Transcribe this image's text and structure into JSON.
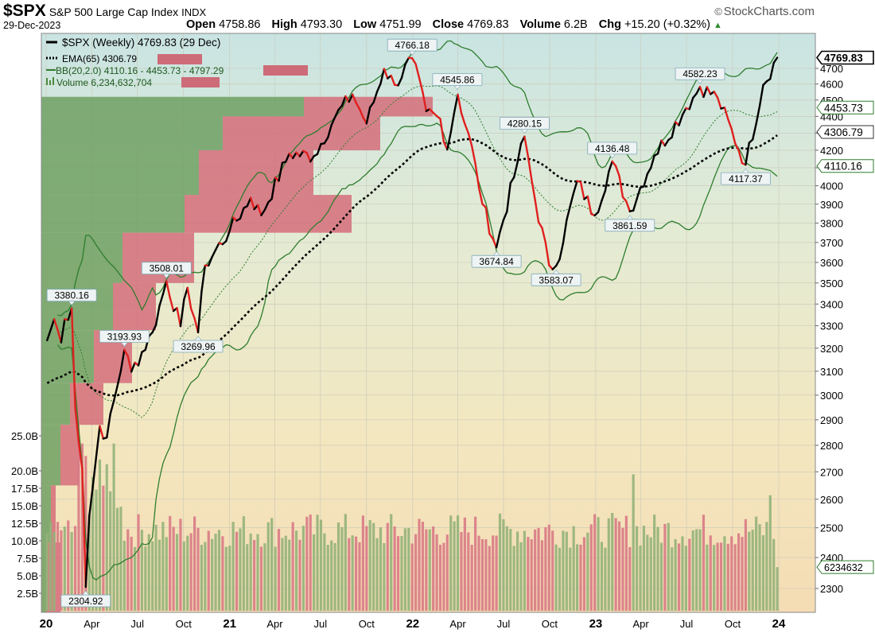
{
  "header": {
    "symbol": "$SPX",
    "name": "S&P 500 Large Cap Index",
    "exchange": "INDX",
    "brand": "StockCharts.com",
    "date": "29-Dec-2023",
    "open_label": "Open",
    "open": "4758.86",
    "high_label": "High",
    "high": "4793.30",
    "low_label": "Low",
    "low": "4751.99",
    "close_label": "Close",
    "close": "4769.83",
    "volume_label": "Volume",
    "volume": "6.2B",
    "chg_label": "Chg",
    "chg": "+15.20 (+0.32%)"
  },
  "legend": {
    "price": "$SPX (Weekly) 4769.83 (29 Dec)",
    "ema": "EMA(65) 4306.79",
    "bb": "BB(20,2.0) 4110.16 - 4453.73 - 4797.29",
    "volume": "Volume 6,234,632,704"
  },
  "colors": {
    "up": "#000000",
    "down": "#e0201f",
    "ema": "#000000",
    "bb": "#2e7d2e",
    "vol_up": "#93b27a",
    "vol_down": "#d97a86",
    "vbp_up": "#6fa063",
    "vbp_down": "#d56d7a"
  },
  "chart_data": {
    "type": "line",
    "title": "$SPX S&P 500 Large Cap Index",
    "y_axis_right": {
      "ticks": [
        2300,
        2400,
        2500,
        2600,
        2700,
        2800,
        2900,
        3000,
        3100,
        3200,
        3300,
        3400,
        3500,
        3600,
        3700,
        3800,
        3900,
        4000,
        4100,
        4200,
        4300,
        4400,
        4500,
        4600,
        4700
      ],
      "range": [
        2210,
        4820
      ],
      "scale": "log"
    },
    "volume_axis_left": {
      "ticks": [
        "2.5B",
        "5.0B",
        "7.5B",
        "10.0B",
        "12.5B",
        "15.0B",
        "17.5B",
        "20.0B",
        "25.0B"
      ],
      "values": [
        2.5,
        5,
        7.5,
        10,
        12.5,
        15,
        17.5,
        20,
        25
      ]
    },
    "x_axis": {
      "labels": [
        "20",
        "Apr",
        "Jul",
        "Oct",
        "21",
        "Apr",
        "Jul",
        "Oct",
        "22",
        "Apr",
        "Jul",
        "Oct",
        "23",
        "Apr",
        "Jul",
        "Oct",
        "24"
      ],
      "dates": [
        "2020-01",
        "2020-04",
        "2020-07",
        "2020-10",
        "2021-01",
        "2021-04",
        "2021-07",
        "2021-10",
        "2022-01",
        "2022-04",
        "2022-07",
        "2022-10",
        "2023-01",
        "2023-04",
        "2023-07",
        "2023-10",
        "2024-01"
      ]
    },
    "price_series": {
      "name": "$SPX (Weekly)",
      "points": [
        [
          "2020-01-03",
          3235
        ],
        [
          "2020-01-17",
          3330
        ],
        [
          "2020-01-31",
          3225
        ],
        [
          "2020-02-07",
          3330
        ],
        [
          "2020-02-21",
          3380
        ],
        [
          "2020-02-28",
          2950
        ],
        [
          "2020-03-13",
          2710
        ],
        [
          "2020-03-20",
          2305
        ],
        [
          "2020-03-27",
          2540
        ],
        [
          "2020-04-17",
          2875
        ],
        [
          "2020-05-01",
          2830
        ],
        [
          "2020-06-05",
          3193
        ],
        [
          "2020-06-19",
          3098
        ],
        [
          "2020-07-31",
          3270
        ],
        [
          "2020-08-28",
          3508
        ],
        [
          "2020-09-25",
          3298
        ],
        [
          "2020-10-09",
          3477
        ],
        [
          "2020-10-30",
          3270
        ],
        [
          "2020-11-13",
          3585
        ],
        [
          "2020-12-31",
          3756
        ],
        [
          "2021-02-12",
          3934
        ],
        [
          "2021-03-05",
          3841
        ],
        [
          "2021-04-30",
          4181
        ],
        [
          "2021-06-18",
          4166
        ],
        [
          "2021-07-30",
          4395
        ],
        [
          "2021-09-03",
          4535
        ],
        [
          "2021-10-01",
          4357
        ],
        [
          "2021-11-05",
          4697
        ],
        [
          "2021-11-26",
          4595
        ],
        [
          "2021-12-31",
          4766
        ],
        [
          "2022-01-28",
          4432
        ],
        [
          "2022-02-25",
          4385
        ],
        [
          "2022-03-11",
          4204
        ],
        [
          "2022-03-31",
          4546
        ],
        [
          "2022-05-06",
          4123
        ],
        [
          "2022-05-20",
          3901
        ],
        [
          "2022-06-17",
          3675
        ],
        [
          "2022-07-29",
          4130
        ],
        [
          "2022-08-12",
          4280
        ],
        [
          "2022-09-02",
          3924
        ],
        [
          "2022-09-30",
          3586
        ],
        [
          "2022-10-14",
          3583
        ],
        [
          "2022-11-25",
          4026
        ],
        [
          "2022-12-30",
          3840
        ],
        [
          "2023-02-03",
          4136
        ],
        [
          "2023-03-10",
          3862
        ],
        [
          "2023-04-28",
          4169
        ],
        [
          "2023-06-30",
          4450
        ],
        [
          "2023-07-28",
          4582
        ],
        [
          "2023-09-01",
          4515
        ],
        [
          "2023-10-27",
          4117
        ],
        [
          "2023-12-01",
          4594
        ],
        [
          "2023-12-29",
          4769.83
        ]
      ]
    },
    "ema65_last": 4306.79,
    "bollinger_last": {
      "lower": 4110.16,
      "middle": 4453.73,
      "upper": 4797.29
    },
    "annotations": [
      {
        "date": "2020-02-21",
        "value": 3380.16,
        "label": "3380.16",
        "pos": "above"
      },
      {
        "date": "2020-03-20",
        "value": 2304.92,
        "label": "2304.92",
        "pos": "below"
      },
      {
        "date": "2020-06-05",
        "value": 3193.93,
        "label": "3193.93",
        "pos": "above"
      },
      {
        "date": "2020-08-28",
        "value": 3508.01,
        "label": "3508.01",
        "pos": "above"
      },
      {
        "date": "2020-10-30",
        "value": 3269.96,
        "label": "3269.96",
        "pos": "below"
      },
      {
        "date": "2021-12-31",
        "value": 4766.18,
        "label": "4766.18",
        "pos": "above"
      },
      {
        "date": "2022-03-31",
        "value": 4545.86,
        "label": "4545.86",
        "pos": "above"
      },
      {
        "date": "2022-06-17",
        "value": 3674.84,
        "label": "3674.84",
        "pos": "below"
      },
      {
        "date": "2022-08-12",
        "value": 4280.15,
        "label": "4280.15",
        "pos": "above"
      },
      {
        "date": "2022-10-14",
        "value": 3583.07,
        "label": "3583.07",
        "pos": "below"
      },
      {
        "date": "2023-02-03",
        "value": 4136.48,
        "label": "4136.48",
        "pos": "above"
      },
      {
        "date": "2023-03-10",
        "value": 3861.59,
        "label": "3861.59",
        "pos": "below"
      },
      {
        "date": "2023-07-28",
        "value": 4582.23,
        "label": "4582.23",
        "pos": "above"
      },
      {
        "date": "2023-10-27",
        "value": 4117.37,
        "label": "4117.37",
        "pos": "below"
      }
    ],
    "right_value_tags": [
      {
        "value": 4769.83,
        "label": "4769.83",
        "style": "price"
      },
      {
        "value": 4453.73,
        "label": "4453.73",
        "style": "bb"
      },
      {
        "value": 4306.79,
        "label": "4306.79",
        "style": "ema"
      },
      {
        "value": 4110.16,
        "label": "4110.16",
        "style": "bb"
      },
      {
        "value": 6.23,
        "label": "6234632",
        "style": "volume"
      }
    ],
    "volume_by_price": [
      {
        "lo": 4400,
        "hi": 4520,
        "up": 0.55,
        "down": 0.27
      },
      {
        "lo": 4200,
        "hi": 4400,
        "up": 0.38,
        "down": 0.33
      },
      {
        "lo": 3950,
        "hi": 4200,
        "up": 0.33,
        "down": 0.24
      },
      {
        "lo": 3750,
        "hi": 3950,
        "up": 0.3,
        "down": 0.35
      },
      {
        "lo": 3500,
        "hi": 3750,
        "up": 0.17,
        "down": 0.15
      },
      {
        "lo": 3280,
        "hi": 3500,
        "up": 0.15,
        "down": 0.09
      },
      {
        "lo": 3050,
        "hi": 3280,
        "up": 0.11,
        "down": 0.08
      },
      {
        "lo": 2880,
        "hi": 3050,
        "up": 0.06,
        "down": 0.07
      },
      {
        "lo": 2650,
        "hi": 2880,
        "up": 0.04,
        "down": 0.04
      },
      {
        "lo": 2450,
        "hi": 2650,
        "up": 0.02,
        "down": 0.01
      },
      {
        "lo": 2210,
        "hi": 2450,
        "up": 0.01,
        "down": 0.03
      }
    ],
    "volume_series": {
      "name": "Volume",
      "unit": "B",
      "last": 6.23
    }
  }
}
